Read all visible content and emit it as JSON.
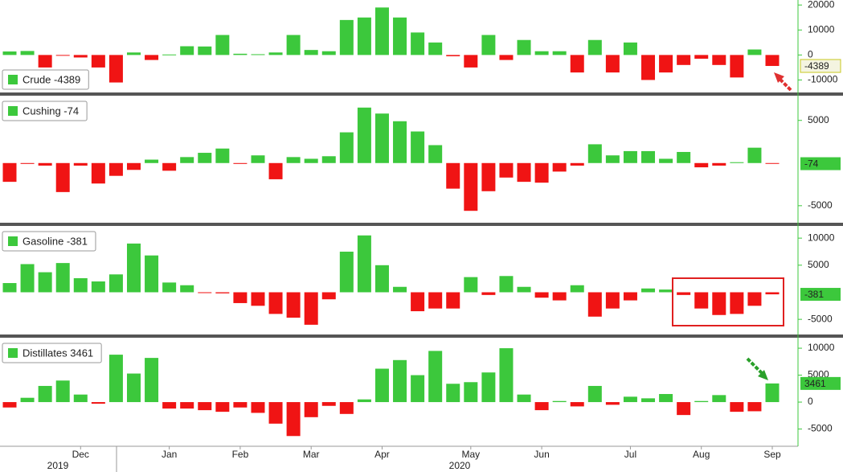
{
  "chart_data": [
    {
      "type": "bar",
      "legend": "bottom-left",
      "colors": {
        "up": "#3cc83c",
        "down": "#f01414"
      },
      "series": [
        {
          "name": "Crude -4389",
          "values": [
            1400,
            1600,
            -5000,
            -300,
            -1000,
            -5000,
            -11000,
            1000,
            -2000,
            200,
            3500,
            3400,
            8000,
            500,
            300,
            1000,
            8000,
            2000,
            1500,
            14000,
            15000,
            19000,
            15000,
            9000,
            5000,
            -500,
            -5000,
            8000,
            -2000,
            6000,
            1500,
            1500,
            -7000,
            6000,
            -7000,
            5000,
            -10000,
            -7000,
            -4000,
            -1500,
            -4000,
            -9000,
            2200,
            -4389
          ]
        }
      ],
      "ylim": [
        -15000,
        22000
      ],
      "yticks": [
        -10000,
        0,
        10000,
        20000
      ]
    },
    {
      "type": "bar",
      "legend": "top-left",
      "colors": {
        "up": "#3cc83c",
        "down": "#f01414"
      },
      "series": [
        {
          "name": "Cushing -74",
          "values": [
            -2200,
            -100,
            -300,
            -3400,
            -300,
            -2400,
            -1500,
            -800,
            400,
            -900,
            700,
            1200,
            1700,
            -100,
            900,
            -1900,
            700,
            500,
            800,
            3600,
            6500,
            5800,
            4900,
            3700,
            2100,
            -3000,
            -5600,
            -3300,
            -1700,
            -2200,
            -2300,
            -1000,
            -300,
            2200,
            900,
            1400,
            1400,
            500,
            1300,
            -500,
            -300,
            100,
            1800,
            -74
          ]
        }
      ],
      "ylim": [
        -6900,
        7800
      ],
      "yticks": [
        -5000,
        5000
      ]
    },
    {
      "type": "bar",
      "legend": "top-left",
      "colors": {
        "up": "#3cc83c",
        "down": "#f01414"
      },
      "series": [
        {
          "name": "Gasoline -381",
          "values": [
            1700,
            5200,
            3700,
            5400,
            2600,
            2000,
            3300,
            9000,
            6800,
            1800,
            1300,
            -100,
            -200,
            -2000,
            -2500,
            -4000,
            -4700,
            -6000,
            -1300,
            7500,
            10500,
            5000,
            1000,
            -3500,
            -3000,
            -3000,
            2800,
            -500,
            3000,
            1000,
            -1000,
            -1500,
            1300,
            -4500,
            -3000,
            -1500,
            700,
            500,
            -500,
            -3000,
            -4200,
            -4000,
            -2500,
            -381
          ]
        }
      ],
      "ylim": [
        -7800,
        12100
      ],
      "yticks": [
        -5000,
        5000,
        10000
      ]
    },
    {
      "type": "bar",
      "legend": "top-left",
      "colors": {
        "up": "#3cc83c",
        "down": "#f01414"
      },
      "series": [
        {
          "name": "Distillates 3461",
          "values": [
            -1000,
            800,
            3000,
            4000,
            1400,
            -300,
            8800,
            5300,
            8200,
            -1200,
            -1200,
            -1500,
            -1800,
            -1000,
            -2000,
            -4000,
            -6300,
            -2800,
            -700,
            -2200,
            500,
            6200,
            7800,
            5000,
            9500,
            3400,
            3700,
            5500,
            10000,
            1400,
            -1500,
            200,
            -800,
            3000,
            -500,
            1000,
            700,
            1500,
            -2400,
            200,
            1300,
            -1800,
            -1700,
            3461
          ]
        }
      ],
      "ylim": [
        -8200,
        11800
      ],
      "yticks": [
        -5000,
        0,
        5000,
        10000
      ],
      "categories": [
        null,
        null,
        null,
        null,
        "Dec",
        null,
        null,
        null,
        null,
        "Jan",
        null,
        null,
        null,
        "Feb",
        null,
        null,
        null,
        "Mar",
        null,
        null,
        null,
        "Apr",
        null,
        null,
        null,
        null,
        "May",
        null,
        null,
        null,
        "Jun",
        null,
        null,
        null,
        null,
        "Jul",
        null,
        null,
        null,
        "Aug",
        null,
        null,
        null,
        "Sep"
      ],
      "year_labels": [
        "2019",
        "2020"
      ]
    }
  ]
}
